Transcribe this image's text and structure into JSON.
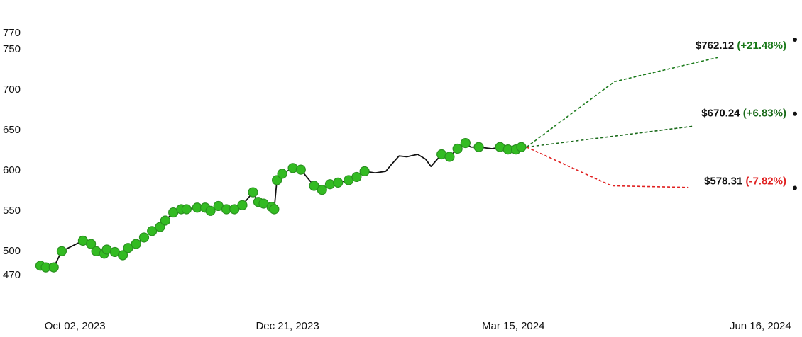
{
  "chart_data": {
    "type": "line",
    "xlim": [
      "2023-09-19",
      "2024-06-29"
    ],
    "ylim": [
      470,
      770
    ],
    "yticks": [
      470,
      500,
      550,
      600,
      650,
      700,
      750,
      770
    ],
    "xticks": [
      {
        "value": "2023-10-02",
        "label": "Oct 02, 2023"
      },
      {
        "value": "2023-12-21",
        "label": "Dec 21, 2023"
      },
      {
        "value": "2024-03-15",
        "label": "Mar 15, 2024"
      },
      {
        "value": "2024-06-16",
        "label": "Jun 16, 2024"
      }
    ],
    "series": [
      {
        "color": "#111111",
        "x": [
          "2023-09-19",
          "2023-09-21",
          "2023-09-24",
          "2023-09-27",
          "2023-10-05",
          "2023-10-08",
          "2023-10-10",
          "2023-10-13",
          "2023-10-14",
          "2023-10-17",
          "2023-10-20",
          "2023-10-22",
          "2023-10-25",
          "2023-10-28",
          "2023-10-31",
          "2023-11-03",
          "2023-11-05",
          "2023-11-08",
          "2023-11-11",
          "2023-11-13",
          "2023-11-17",
          "2023-11-20",
          "2023-11-22",
          "2023-11-25",
          "2023-11-28",
          "2023-12-01",
          "2023-12-04",
          "2023-12-08",
          "2023-12-10",
          "2023-12-12",
          "2023-12-15",
          "2023-12-16",
          "2023-12-17",
          "2023-12-19",
          "2023-12-23",
          "2023-12-26",
          "2023-12-31",
          "2024-01-03",
          "2024-01-06",
          "2024-01-09",
          "2024-01-13",
          "2024-01-16",
          "2024-01-19",
          "2024-01-23",
          "2024-01-27",
          "2024-01-29",
          "2024-02-01",
          "2024-02-04",
          "2024-02-08",
          "2024-02-11",
          "2024-02-13",
          "2024-02-17",
          "2024-02-20",
          "2024-02-23",
          "2024-02-26",
          "2024-02-28",
          "2024-03-02",
          "2024-03-07",
          "2024-03-10",
          "2024-03-13",
          "2024-03-16",
          "2024-03-18",
          "2024-03-20"
        ],
        "values": [
          482,
          480,
          480,
          500,
          513,
          509,
          500,
          497,
          502,
          499,
          495,
          504,
          509,
          517,
          525,
          530,
          538,
          548,
          552,
          552,
          554,
          554,
          550,
          556,
          552,
          552,
          557,
          573,
          561,
          559,
          555,
          552,
          588,
          596,
          603,
          601,
          581,
          576,
          583,
          585,
          588,
          592,
          599,
          597,
          599,
          607,
          618,
          617,
          620,
          614,
          605,
          620,
          617,
          627,
          634,
          629,
          629,
          627,
          629,
          626,
          626,
          629,
          629
        ]
      },
      {
        "color": "#33bb22",
        "x": [
          "2023-09-19",
          "2023-09-21",
          "2023-09-24",
          "2023-09-27",
          "2023-10-05",
          "2023-10-08",
          "2023-10-10",
          "2023-10-13",
          "2023-10-14",
          "2023-10-17",
          "2023-10-20",
          "2023-10-22",
          "2023-10-25",
          "2023-10-28",
          "2023-10-31",
          "2023-11-03",
          "2023-11-05",
          "2023-11-08",
          "2023-11-11",
          "2023-11-13",
          "2023-11-17",
          "2023-11-20",
          "2023-11-22",
          "2023-11-25",
          "2023-11-28",
          "2023-12-01",
          "2023-12-04",
          "2023-12-08",
          "2023-12-10",
          "2023-12-12",
          "2023-12-15",
          "2023-12-16",
          "2023-12-17",
          "2023-12-19",
          "2023-12-23",
          "2023-12-26",
          "2023-12-31",
          "2024-01-03",
          "2024-01-06",
          "2024-01-09",
          "2024-01-13",
          "2024-01-16",
          "2024-01-19",
          "2024-02-17",
          "2024-02-20",
          "2024-02-23",
          "2024-02-26",
          "2024-03-02",
          "2024-03-10",
          "2024-03-13",
          "2024-03-16",
          "2024-03-18"
        ],
        "values": [
          482,
          480,
          480,
          500,
          513,
          509,
          500,
          497,
          502,
          499,
          495,
          504,
          509,
          517,
          525,
          530,
          538,
          548,
          552,
          552,
          554,
          554,
          550,
          556,
          552,
          552,
          557,
          573,
          561,
          559,
          555,
          552,
          588,
          596,
          603,
          601,
          581,
          576,
          583,
          585,
          588,
          592,
          599,
          620,
          617,
          627,
          634,
          629,
          629,
          626,
          626,
          629
        ]
      }
    ],
    "forecasts": [
      {
        "color": "#1a7a1a",
        "x": [
          "2024-03-20",
          "2024-04-22",
          "2024-05-31"
        ],
        "values": [
          629,
          710,
          740
        ],
        "target": {
          "value": 762.12,
          "label": "$762.12"
        },
        "change": {
          "value": 21.48,
          "label": "(+21.48%)"
        }
      },
      {
        "color": "#1a6a1a",
        "x": [
          "2024-03-20",
          "2024-05-22"
        ],
        "values": [
          629,
          655
        ],
        "target": {
          "value": 670.24,
          "label": "$670.24"
        },
        "change": {
          "value": 6.83,
          "label": "(+6.83%)"
        }
      },
      {
        "color": "#e02020",
        "x": [
          "2024-03-20",
          "2024-04-21",
          "2024-05-20"
        ],
        "values": [
          629,
          581,
          579
        ],
        "target": {
          "value": 578.31,
          "label": "$578.31"
        },
        "change": {
          "value": -7.82,
          "label": "(-7.82%)"
        }
      }
    ]
  }
}
